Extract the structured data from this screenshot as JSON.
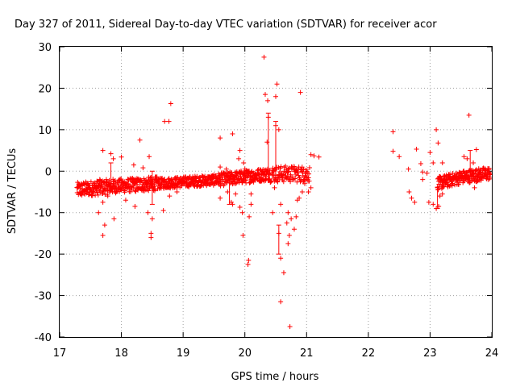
{
  "chart_data": {
    "type": "scatter",
    "title": "Day 327 of 2011, Sidereal Day-to-day VTEC variation (SDTVAR) for receiver acor",
    "xlabel": "GPS time / hours",
    "ylabel": "SDTVAR / TECUs",
    "xlim": [
      17,
      24
    ],
    "ylim": [
      -40,
      30
    ],
    "xticks": [
      17,
      18,
      19,
      20,
      21,
      22,
      23,
      24
    ],
    "yticks": [
      -40,
      -30,
      -20,
      -10,
      0,
      10,
      20,
      30
    ],
    "grid": true,
    "marker": "plus",
    "color": "#ff0000",
    "series": [
      {
        "name": "SDTVAR",
        "segments": [
          {
            "x0": 17.28,
            "x1": 17.9,
            "y0": -4.5,
            "y1": -3.6,
            "spread": 1.8,
            "step": 0.004
          },
          {
            "x0": 17.9,
            "x1": 18.6,
            "y0": -3.6,
            "y1": -3.0,
            "spread": 1.7,
            "step": 0.004
          },
          {
            "x0": 18.6,
            "x1": 19.55,
            "y0": -3.0,
            "y1": -2.1,
            "spread": 1.3,
            "step": 0.004
          },
          {
            "x0": 19.55,
            "x1": 20.4,
            "y0": -2.1,
            "y1": -0.7,
            "spread": 1.6,
            "step": 0.004
          },
          {
            "x0": 20.4,
            "x1": 21.05,
            "y0": -0.7,
            "y1": -0.7,
            "spread": 2.0,
            "step": 0.006
          },
          {
            "x0": 23.12,
            "x1": 23.5,
            "y0": -3.0,
            "y1": -1.5,
            "spread": 1.6,
            "step": 0.004
          },
          {
            "x0": 23.5,
            "x1": 23.98,
            "y0": -1.5,
            "y1": -0.5,
            "spread": 1.6,
            "step": 0.004
          }
        ],
        "errorbars": [
          {
            "x": 20.38,
            "low": -2,
            "high": 14
          },
          {
            "x": 20.5,
            "low": -1,
            "high": 12
          },
          {
            "x": 20.55,
            "low": -20,
            "high": -13
          },
          {
            "x": 18.5,
            "low": -8,
            "high": 0
          },
          {
            "x": 19.75,
            "low": -8,
            "high": -2
          },
          {
            "x": 17.83,
            "low": -5,
            "high": 2
          },
          {
            "x": 23.12,
            "low": -9,
            "high": -4
          },
          {
            "x": 23.65,
            "low": 0,
            "high": 5
          }
        ],
        "points": [
          [
            20.31,
            27.5
          ],
          [
            20.52,
            21
          ],
          [
            20.9,
            19
          ],
          [
            20.33,
            18.5
          ],
          [
            20.37,
            17
          ],
          [
            20.5,
            18
          ],
          [
            18.8,
            16.3
          ],
          [
            20.38,
            13
          ],
          [
            18.7,
            12
          ],
          [
            18.77,
            12
          ],
          [
            20.5,
            11
          ],
          [
            20.55,
            10
          ],
          [
            19.8,
            9
          ],
          [
            19.6,
            8
          ],
          [
            18.3,
            7.5
          ],
          [
            20.36,
            7
          ],
          [
            19.92,
            5
          ],
          [
            22.4,
            9.5
          ],
          [
            23.1,
            10
          ],
          [
            23.63,
            13.5
          ],
          [
            23.13,
            6.8
          ],
          [
            23.75,
            5.2
          ],
          [
            22.78,
            5.3
          ],
          [
            22.4,
            4.8
          ],
          [
            23.0,
            4.5
          ],
          [
            17.7,
            5
          ],
          [
            17.83,
            4.2
          ],
          [
            17.87,
            3
          ],
          [
            18.0,
            3.4
          ],
          [
            18.45,
            3.5
          ],
          [
            19.9,
            3
          ],
          [
            21.07,
            4
          ],
          [
            21.12,
            3.7
          ],
          [
            21.2,
            3.4
          ],
          [
            22.5,
            3.5
          ],
          [
            23.05,
            2
          ],
          [
            22.85,
            1.8
          ],
          [
            23.2,
            2
          ],
          [
            23.6,
            3
          ],
          [
            23.55,
            3.5
          ],
          [
            23.7,
            2
          ],
          [
            18.2,
            1.5
          ],
          [
            18.35,
            0.8
          ],
          [
            19.6,
            1
          ],
          [
            19.7,
            0.5
          ],
          [
            19.98,
            2
          ],
          [
            20.0,
            0.5
          ],
          [
            20.7,
            0.5
          ],
          [
            20.8,
            1
          ],
          [
            20.95,
            0.5
          ],
          [
            22.65,
            0.5
          ],
          [
            22.88,
            -0.2
          ],
          [
            22.95,
            -0.5
          ],
          [
            23.3,
            -1
          ],
          [
            17.65,
            -2
          ],
          [
            17.78,
            -6
          ],
          [
            17.7,
            -7.5
          ],
          [
            17.63,
            -10
          ],
          [
            17.73,
            -13
          ],
          [
            17.7,
            -15.5
          ],
          [
            17.88,
            -11.5
          ],
          [
            18.07,
            -7
          ],
          [
            18.22,
            -8.5
          ],
          [
            18.43,
            -10
          ],
          [
            18.5,
            -11.5
          ],
          [
            18.48,
            -15
          ],
          [
            18.48,
            -16
          ],
          [
            18.68,
            -9.5
          ],
          [
            18.78,
            -6
          ],
          [
            18.9,
            -5
          ],
          [
            19.6,
            -6.5
          ],
          [
            19.72,
            -5
          ],
          [
            19.78,
            -7.5
          ],
          [
            19.85,
            -5.5
          ],
          [
            19.8,
            -8
          ],
          [
            19.92,
            -8.7
          ],
          [
            19.96,
            -10
          ],
          [
            20.1,
            -8
          ],
          [
            19.97,
            -15.5
          ],
          [
            20.07,
            -11
          ],
          [
            20.06,
            -21.5
          ],
          [
            20.05,
            -22.5
          ],
          [
            20.1,
            -5.5
          ],
          [
            20.48,
            -4
          ],
          [
            20.58,
            -8
          ],
          [
            20.45,
            -10
          ],
          [
            20.7,
            -10
          ],
          [
            20.75,
            -11.5
          ],
          [
            20.68,
            -12.5
          ],
          [
            20.83,
            -11
          ],
          [
            20.8,
            -14
          ],
          [
            20.72,
            -15.5
          ],
          [
            20.7,
            -17.5
          ],
          [
            20.55,
            -15
          ],
          [
            20.58,
            -21
          ],
          [
            20.63,
            -24.5
          ],
          [
            20.58,
            -31.5
          ],
          [
            20.73,
            -37.5
          ],
          [
            20.85,
            -7
          ],
          [
            20.93,
            -5
          ],
          [
            20.88,
            -6.5
          ],
          [
            20.97,
            -3
          ],
          [
            21.03,
            -5
          ],
          [
            21.07,
            -4
          ],
          [
            22.66,
            -5
          ],
          [
            22.7,
            -6.5
          ],
          [
            22.75,
            -7.5
          ],
          [
            22.88,
            -2
          ],
          [
            22.98,
            -7.5
          ],
          [
            23.05,
            -8
          ],
          [
            23.1,
            -9
          ],
          [
            23.14,
            -8.5
          ],
          [
            23.16,
            -6
          ],
          [
            23.2,
            -5.5
          ],
          [
            23.72,
            -4
          ]
        ]
      }
    ]
  }
}
